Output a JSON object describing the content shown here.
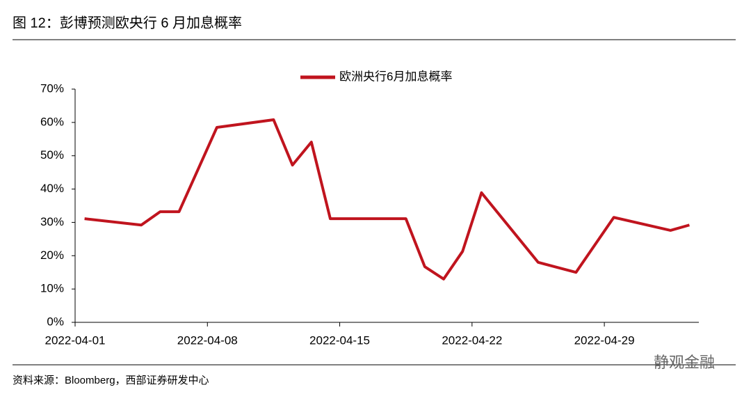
{
  "chart_data": {
    "type": "line",
    "title": "图 12：彭博预测欧央行 6 月加息概率",
    "source": "资料来源：Bloomberg，西部证券研发中心",
    "watermark": "静观金融",
    "x": [
      "2022-04-01",
      "2022-04-04",
      "2022-04-05",
      "2022-04-06",
      "2022-04-08",
      "2022-04-11",
      "2022-04-12",
      "2022-04-13",
      "2022-04-14",
      "2022-04-18",
      "2022-04-19",
      "2022-04-20",
      "2022-04-21",
      "2022-04-22",
      "2022-04-25",
      "2022-04-27",
      "2022-04-29",
      "2022-05-02",
      "2022-05-03"
    ],
    "series": [
      {
        "name": "欧洲央行6月加息概率",
        "color": "#c0141e",
        "values": [
          31.1,
          29.2,
          33.2,
          33.2,
          58.5,
          60.8,
          47.2,
          54.1,
          31.1,
          31.1,
          16.7,
          13.0,
          21.3,
          38.9,
          18.0,
          15.0,
          31.5,
          27.6,
          29.2
        ]
      }
    ],
    "xlim": [
      "2022-04-01",
      "2022-05-04"
    ],
    "xticks": [
      "2022-04-01",
      "2022-04-08",
      "2022-04-15",
      "2022-04-22",
      "2022-04-29"
    ],
    "ylim": [
      0,
      70
    ],
    "yticks": [
      {
        "value": 0,
        "label": "0%"
      },
      {
        "value": 10,
        "label": "10%"
      },
      {
        "value": 20,
        "label": "20%"
      },
      {
        "value": 30,
        "label": "30%"
      },
      {
        "value": 40,
        "label": "40%"
      },
      {
        "value": 50,
        "label": "50%"
      },
      {
        "value": 60,
        "label": "60%"
      },
      {
        "value": 70,
        "label": "70%"
      }
    ],
    "grid": false,
    "legend": "top"
  }
}
